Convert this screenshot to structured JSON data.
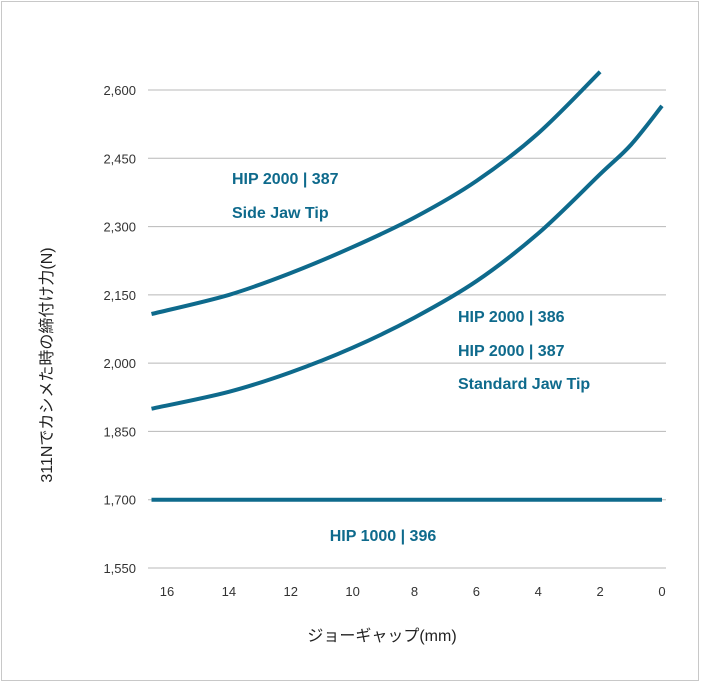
{
  "chart_data": {
    "type": "line",
    "xlabel": "ジョーギャップ(mm)",
    "ylabel": "311Nでカシメた時の締付け力(N)",
    "x_ticks": [
      16,
      14,
      12,
      10,
      8,
      6,
      4,
      2,
      0
    ],
    "y_ticks": [
      1550,
      1700,
      1850,
      2000,
      2150,
      2300,
      2450,
      2600
    ],
    "y_tick_labels": [
      "1,550",
      "1,700",
      "1,850",
      "2,000",
      "2,150",
      "2,300",
      "2,450",
      "2,600"
    ],
    "xlim": [
      16.5,
      -0.1
    ],
    "ylim": [
      1550,
      2700
    ],
    "grid": "horizontal",
    "line_color": "#0e6a8c",
    "series": [
      {
        "x": [
          16.5,
          14,
          12,
          10,
          8,
          6,
          4,
          2
        ],
        "y": [
          2108,
          2150,
          2198,
          2255,
          2320,
          2400,
          2505,
          2640
        ]
      },
      {
        "x": [
          16.5,
          14,
          12,
          10,
          8,
          6,
          4,
          2,
          1,
          0
        ],
        "y": [
          1900,
          1937,
          1980,
          2034,
          2100,
          2180,
          2285,
          2415,
          2480,
          2565
        ]
      },
      {
        "x": [
          16.5,
          0
        ],
        "y": [
          1700,
          1700
        ]
      }
    ],
    "annotations": [
      {
        "lines": [
          "HIP 2000 | 387",
          "Side Jaw Tip"
        ]
      },
      {
        "lines": [
          "HIP 2000 | 386",
          "HIP 2000 | 387",
          "Standard Jaw Tip"
        ]
      },
      {
        "lines": [
          "HIP 1000 | 396"
        ]
      }
    ]
  }
}
